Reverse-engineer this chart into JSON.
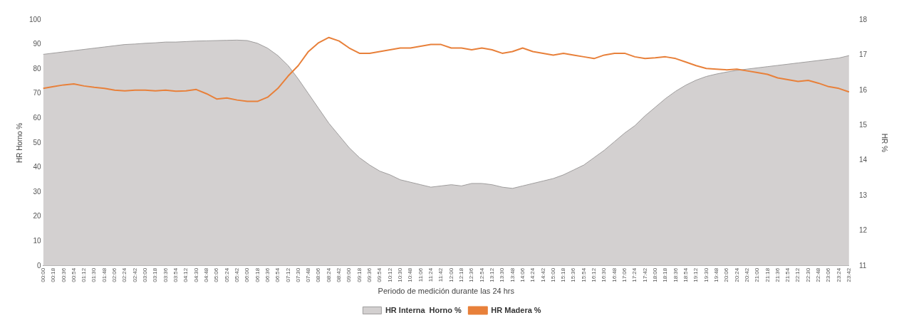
{
  "chart_data": {
    "type": "line",
    "xlabel": "Periodo de medición durante las 24 hrs",
    "ylabel": "HR Horno %",
    "y2label": "HR %",
    "categories": [
      "00:00",
      "00:18",
      "00:36",
      "00:54",
      "01:12",
      "01:30",
      "01:48",
      "02:06",
      "02:24",
      "02:42",
      "03:00",
      "03:18",
      "03:36",
      "03:54",
      "04:12",
      "04:30",
      "04:48",
      "05:06",
      "05:24",
      "05:42",
      "06:00",
      "06:18",
      "06:36",
      "06:54",
      "07:12",
      "07:30",
      "07:48",
      "08:06",
      "08:24",
      "08:42",
      "09:00",
      "09:18",
      "09:36",
      "09:54",
      "10:12",
      "10:30",
      "10:48",
      "11:06",
      "11:24",
      "11:42",
      "12:00",
      "12:18",
      "12:36",
      "12:54",
      "13:12",
      "13:30",
      "13:48",
      "14:06",
      "14:24",
      "14:42",
      "15:00",
      "15:18",
      "15:36",
      "15:54",
      "16:12",
      "16:30",
      "16:48",
      "17:06",
      "17:24",
      "17:42",
      "18:00",
      "18:18",
      "18:36",
      "18:54",
      "19:12",
      "19:30",
      "19:48",
      "20:06",
      "20:24",
      "20:42",
      "21:00",
      "21:18",
      "21:36",
      "21:54",
      "22:12",
      "22:30",
      "22:48",
      "23:06",
      "23:24",
      "23:42"
    ],
    "series": [
      {
        "name": "HR Interna  Horno %",
        "type": "area",
        "color": "#d3d0d0",
        "values": [
          86,
          86.5,
          87,
          87.5,
          88,
          88.5,
          89,
          89.5,
          90,
          90.2,
          90.5,
          90.7,
          91,
          91,
          91.2,
          91.4,
          91.5,
          91.6,
          91.7,
          91.8,
          91.6,
          90.5,
          88.5,
          85.5,
          81.5,
          76,
          70,
          64,
          58,
          53,
          48,
          44,
          41,
          38.5,
          37,
          35,
          34,
          33,
          32,
          32.5,
          33,
          32.5,
          33.5,
          33.5,
          33,
          32,
          31.5,
          32.5,
          33.5,
          34.5,
          35.5,
          37,
          39,
          41,
          44,
          47,
          50.5,
          54,
          57,
          61,
          64.5,
          68,
          71,
          73.5,
          75.5,
          77,
          78,
          78.8,
          79.5,
          80,
          80.5,
          81,
          81.5,
          82,
          82.5,
          83,
          83.5,
          84,
          84.5,
          85.5
        ]
      },
      {
        "name": "HR Madera %",
        "axis": "y2",
        "color": "#e8803a",
        "values": [
          16.05,
          16.1,
          16.15,
          16.18,
          16.12,
          16.08,
          16.05,
          16,
          15.98,
          16,
          16,
          15.98,
          16,
          15.97,
          15.98,
          16.02,
          15.9,
          15.75,
          15.78,
          15.72,
          15.68,
          15.68,
          15.8,
          16.05,
          16.4,
          16.7,
          17.1,
          17.35,
          17.5,
          17.4,
          17.2,
          17.05,
          17.05,
          17.1,
          17.15,
          17.2,
          17.2,
          17.25,
          17.3,
          17.3,
          17.2,
          17.2,
          17.15,
          17.2,
          17.15,
          17.05,
          17.1,
          17.2,
          17.1,
          17.05,
          17,
          17.05,
          17,
          16.95,
          16.9,
          17,
          17.05,
          17.05,
          16.95,
          16.9,
          16.92,
          16.95,
          16.9,
          16.8,
          16.7,
          16.62,
          16.6,
          16.58,
          16.6,
          16.55,
          16.5,
          16.45,
          16.35,
          16.3,
          16.25,
          16.28,
          16.2,
          16.1,
          16.05,
          15.95
        ]
      }
    ],
    "ylim": [
      0,
      100
    ],
    "yticks": [
      0,
      10,
      20,
      30,
      40,
      50,
      60,
      70,
      80,
      90,
      100
    ],
    "y2lim": [
      11,
      18
    ],
    "y2ticks": [
      11,
      12,
      13,
      14,
      15,
      16,
      17,
      18
    ],
    "legend": "bottom",
    "marker": "none",
    "line_style": "solid"
  }
}
